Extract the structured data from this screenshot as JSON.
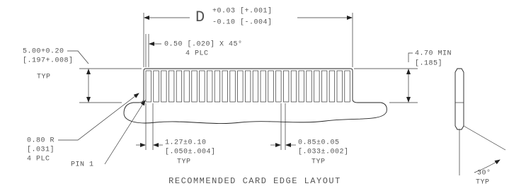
{
  "header": {
    "title": "RECOMMENDED CARD EDGE LAYOUT"
  },
  "dims": {
    "width": {
      "symbol": "D",
      "upper": "+0.03 [+.001]",
      "lower": "-0.10 [-.004]"
    },
    "chamfer": {
      "line1": "0.50 [.020] X 45°",
      "line2": "4 PLC"
    },
    "finger_length": {
      "line1": "5.00+0.20",
      "line2": "[.197+.008]",
      "line3": "TYP"
    },
    "min_depth": {
      "line1": "4.70 MIN",
      "line2": "[.185]"
    },
    "radius": {
      "line1": "0.80 R",
      "line2": "[.031]",
      "line3": "4 PLC"
    },
    "pitch": {
      "line1": "1.27±0.10",
      "line2": "[.050±.004]",
      "line3": "TYP"
    },
    "finger_width": {
      "line1": "0.85±0.05",
      "line2": "[.033±.002]",
      "line3": "TYP"
    },
    "pin": {
      "label": "PIN 1"
    },
    "angle": {
      "line1": "30°",
      "line2": "TYP"
    }
  }
}
